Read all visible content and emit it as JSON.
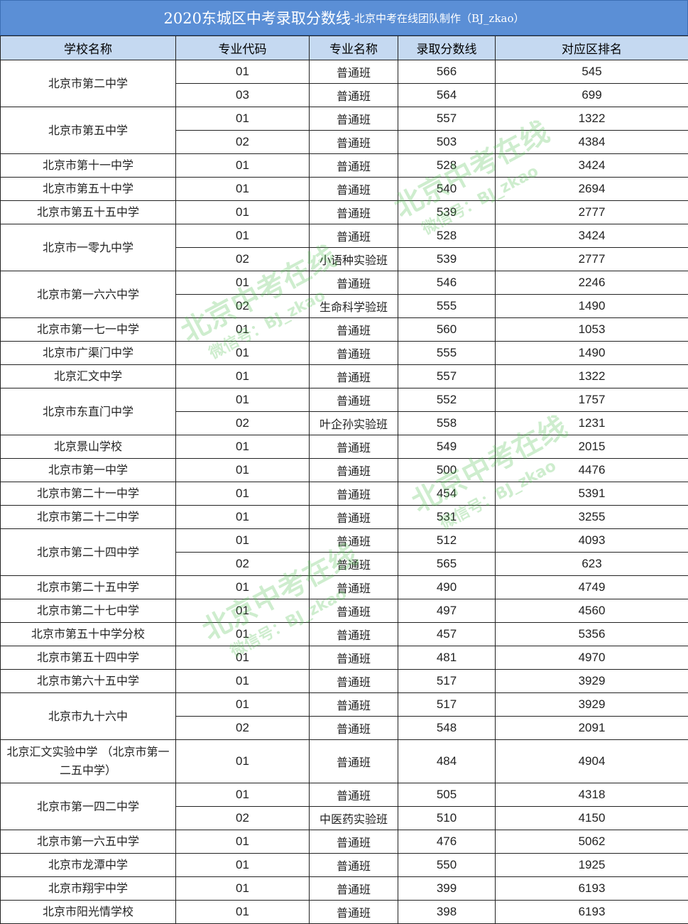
{
  "title": {
    "main": "2020东城区中考录取分数线",
    "sub": "-北京中考在线团队制作（BJ_zkao）"
  },
  "headers": [
    "学校名称",
    "专业代码",
    "专业名称",
    "录取分数线",
    "对应区排名"
  ],
  "watermark": {
    "line1": "北京中考在线",
    "line2": "微信号：BJ_zkao",
    "color": "#50be50"
  },
  "schools": [
    {
      "name": "北京市第二中学",
      "rows": [
        [
          "01",
          "普通班",
          "566",
          "545"
        ],
        [
          "03",
          "普通班",
          "564",
          "699"
        ]
      ]
    },
    {
      "name": "北京市第五中学",
      "rows": [
        [
          "01",
          "普通班",
          "557",
          "1322"
        ],
        [
          "02",
          "普通班",
          "503",
          "4384"
        ]
      ]
    },
    {
      "name": "北京市第十一中学",
      "rows": [
        [
          "01",
          "普通班",
          "528",
          "3424"
        ]
      ]
    },
    {
      "name": "北京市第五十中学",
      "rows": [
        [
          "01",
          "普通班",
          "540",
          "2694"
        ]
      ]
    },
    {
      "name": "北京市第五十五中学",
      "rows": [
        [
          "01",
          "普通班",
          "539",
          "2777"
        ]
      ]
    },
    {
      "name": "北京市一零九中学",
      "rows": [
        [
          "01",
          "普通班",
          "528",
          "3424"
        ],
        [
          "02",
          "小语种实验班",
          "539",
          "2777"
        ]
      ]
    },
    {
      "name": "北京市第一六六中学",
      "rows": [
        [
          "01",
          "普通班",
          "546",
          "2246"
        ],
        [
          "02",
          "生命科学验班",
          "555",
          "1490"
        ]
      ]
    },
    {
      "name": "北京市第一七一中学",
      "rows": [
        [
          "01",
          "普通班",
          "560",
          "1053"
        ]
      ]
    },
    {
      "name": "北京市广渠门中学",
      "rows": [
        [
          "01",
          "普通班",
          "555",
          "1490"
        ]
      ]
    },
    {
      "name": "北京汇文中学",
      "rows": [
        [
          "01",
          "普通班",
          "557",
          "1322"
        ]
      ]
    },
    {
      "name": "北京市东直门中学",
      "rows": [
        [
          "01",
          "普通班",
          "552",
          "1757"
        ],
        [
          "02",
          "叶企孙实验班",
          "558",
          "1231"
        ]
      ]
    },
    {
      "name": "北京景山学校",
      "rows": [
        [
          "01",
          "普通班",
          "549",
          "2015"
        ]
      ]
    },
    {
      "name": "北京市第一中学",
      "rows": [
        [
          "01",
          "普通班",
          "500",
          "4476"
        ]
      ]
    },
    {
      "name": "北京市第二十一中学",
      "rows": [
        [
          "01",
          "普通班",
          "454",
          "5391"
        ]
      ]
    },
    {
      "name": "北京市第二十二中学",
      "rows": [
        [
          "01",
          "普通班",
          "531",
          "3255"
        ]
      ]
    },
    {
      "name": "北京市第二十四中学",
      "rows": [
        [
          "01",
          "普通班",
          "512",
          "4093"
        ],
        [
          "02",
          "普通班",
          "565",
          "623"
        ]
      ]
    },
    {
      "name": "北京市第二十五中学",
      "rows": [
        [
          "01",
          "普通班",
          "490",
          "4749"
        ]
      ]
    },
    {
      "name": "北京市第二十七中学",
      "rows": [
        [
          "01",
          "普通班",
          "497",
          "4560"
        ]
      ]
    },
    {
      "name": "北京市第五十中学分校",
      "rows": [
        [
          "01",
          "普通班",
          "457",
          "5356"
        ]
      ]
    },
    {
      "name": "北京市第五十四中学",
      "rows": [
        [
          "01",
          "普通班",
          "481",
          "4970"
        ]
      ]
    },
    {
      "name": "北京市第六十五中学",
      "rows": [
        [
          "01",
          "普通班",
          "517",
          "3929"
        ]
      ]
    },
    {
      "name": "北京市九十六中",
      "rows": [
        [
          "01",
          "普通班",
          "517",
          "3929"
        ],
        [
          "02",
          "普通班",
          "548",
          "2091"
        ]
      ]
    },
    {
      "name": "北京汇文实验中学 （北京市第一二五中学）",
      "tall": true,
      "rows": [
        [
          "01",
          "普通班",
          "484",
          "4904"
        ]
      ]
    },
    {
      "name": "北京市第一四二中学",
      "rows": [
        [
          "01",
          "普通班",
          "505",
          "4318"
        ],
        [
          "02",
          "中医药实验班",
          "510",
          "4150"
        ]
      ]
    },
    {
      "name": "北京市第一六五中学",
      "rows": [
        [
          "01",
          "普通班",
          "476",
          "5062"
        ]
      ]
    },
    {
      "name": "北京市龙潭中学",
      "rows": [
        [
          "01",
          "普通班",
          "550",
          "1925"
        ]
      ]
    },
    {
      "name": "北京市翔宇中学",
      "rows": [
        [
          "01",
          "普通班",
          "399",
          "6193"
        ]
      ]
    },
    {
      "name": "北京市阳光情学校",
      "rows": [
        [
          "01",
          "普通班",
          "398",
          "6193"
        ]
      ]
    }
  ]
}
